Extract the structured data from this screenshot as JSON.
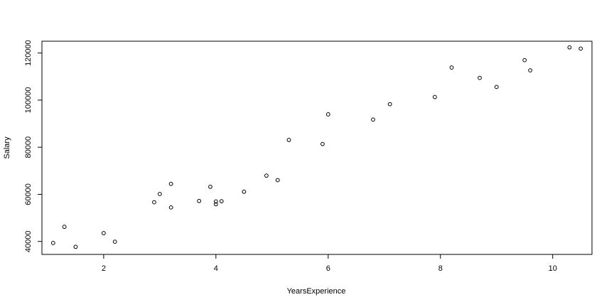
{
  "chart_data": {
    "type": "scatter",
    "title": "",
    "xlabel": "YearsExperience",
    "ylabel": "Salary",
    "xlim": [
      0.9,
      10.7
    ],
    "ylim": [
      34500,
      125000
    ],
    "x_ticks": [
      2,
      4,
      6,
      8,
      10
    ],
    "y_ticks": [
      40000,
      60000,
      80000,
      100000,
      120000
    ],
    "grid": false,
    "legend": "none",
    "marker": "open-circle",
    "series": [
      {
        "x": [
          1.1,
          1.3,
          1.5,
          2.0,
          2.2,
          2.9,
          3.0,
          3.2,
          3.2,
          3.7,
          3.9,
          4.0,
          4.0,
          4.1,
          4.5,
          4.9,
          5.1,
          5.3,
          5.9,
          6.0,
          6.8,
          7.1,
          7.9,
          8.2,
          8.7,
          9.0,
          9.5,
          9.6,
          10.3,
          10.5
        ],
        "y": [
          39343,
          46205,
          37731,
          43525,
          39891,
          56642,
          60150,
          54445,
          64445,
          57189,
          63218,
          55794,
          56957,
          57081,
          61111,
          67938,
          66029,
          83088,
          81363,
          93940,
          91738,
          98273,
          101302,
          113812,
          109431,
          105582,
          116969,
          112635,
          122391,
          121872
        ]
      }
    ],
    "colors": {
      "marker": "#000000",
      "axis": "#000000",
      "background": "#ffffff"
    }
  }
}
